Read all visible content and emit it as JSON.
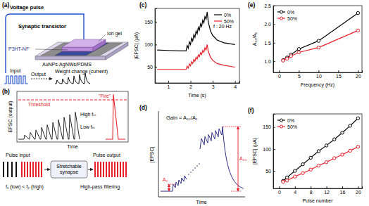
{
  "panel_a": {
    "label": "(a)",
    "voltage_pulse": "Voltage pulse",
    "device": "Synaptic transistor",
    "ion_gel": "Ion gel",
    "channel": "P3HT-NF",
    "electrode": "AuNPs-AgNWs/PDMS",
    "input": "Input",
    "output": "Output",
    "weight_change": "Weight change (current)"
  },
  "panel_b": {
    "label": "(b)",
    "y_label": "EPSC (output)",
    "x_label": "Time",
    "threshold": "Threshold",
    "fire": "\"Fire\"",
    "high": "High fᵢₙ",
    "low": "Low fᵢₙ",
    "pulse_input": "Pulse input",
    "pulse_output": "Pulse output",
    "synapse": "Stretchable synapse",
    "condition": "f₁ (low) < f₂ (high)",
    "filter": "High-pass filtering"
  },
  "panel_d": {
    "label": "(d)",
    "title": "Gain = A₂₀/A₁",
    "y_label": "|EPSC|",
    "x_label": "Time",
    "a1": "A₁",
    "a20": "A₂₀"
  },
  "chart_data": [
    {
      "type": "line",
      "annotations": [
        "(c)",
        "f : 20 Hz"
      ],
      "x_label": "Time (s)",
      "y_label": "|EPSC| (μA)",
      "x": [
        0.5,
        1.0,
        1.5,
        1.8,
        1.85,
        1.9,
        1.95,
        2.0,
        2.05,
        2.1,
        2.15,
        2.2,
        2.25,
        2.3,
        2.35,
        2.4,
        2.45,
        2.5,
        2.55,
        2.6,
        2.65,
        2.7,
        2.75,
        2.8,
        2.9,
        3.0,
        3.2,
        3.5,
        4.0
      ],
      "series": [
        {
          "name": "0%",
          "color": "#000000",
          "values": [
            88,
            87,
            86,
            86,
            98,
            92,
            106,
            100,
            114,
            108,
            122,
            116,
            130,
            124,
            138,
            132,
            146,
            140,
            154,
            148,
            162,
            156,
            172,
            150,
            130,
            120,
            110,
            104,
            100
          ]
        },
        {
          "name": "50%",
          "color": "#e8202a",
          "values": [
            45,
            45,
            45,
            45,
            52,
            48,
            57,
            53,
            62,
            58,
            67,
            63,
            72,
            68,
            77,
            73,
            82,
            78,
            87,
            83,
            93,
            88,
            100,
            85,
            72,
            65,
            58,
            54,
            50
          ]
        }
      ],
      "xlim": [
        0.4,
        4.2
      ],
      "xticks": [
        1,
        2,
        3,
        4
      ],
      "ylim": [
        15,
        180
      ],
      "yticks": [
        50,
        100,
        150
      ],
      "legend": "upper right"
    },
    {
      "type": "line",
      "annotations": [
        "(e)"
      ],
      "x_label": "Frequency (Hz)",
      "y_label": "A₂₀/A₁",
      "x": [
        1,
        2,
        3,
        5,
        10,
        20
      ],
      "series": [
        {
          "name": "0%",
          "color": "#000000",
          "values": [
            1.03,
            1.1,
            1.18,
            1.33,
            1.55,
            2.3
          ]
        },
        {
          "name": "50%",
          "color": "#e8202a",
          "values": [
            1.02,
            1.07,
            1.14,
            1.24,
            1.37,
            1.83
          ]
        }
      ],
      "xlim": [
        -1.5,
        21
      ],
      "xticks": [
        0,
        5,
        10,
        15,
        20
      ],
      "ylim": [
        0.7,
        2.5
      ],
      "yticks": [
        {
          "value": 1,
          "label": "1.0"
        },
        {
          "value": 1.5,
          "label": "1.5"
        },
        {
          "value": 2,
          "label": "2.0"
        },
        {
          "value": 2.5,
          "label": "2.5"
        }
      ],
      "marker": "circle",
      "legend": "upper left"
    },
    {
      "type": "line",
      "annotations": [
        "(f)"
      ],
      "x_label": "Pulse number",
      "y_label": "|EPSC| (μA)",
      "x": [
        1,
        2,
        4,
        6,
        8,
        10,
        12,
        14,
        16,
        18,
        20
      ],
      "series": [
        {
          "name": "0%",
          "color": "#000000",
          "values": [
            27,
            35,
            50,
            65,
            80,
            95,
            108,
            122,
            137,
            153,
            170
          ]
        },
        {
          "name": "50%",
          "color": "#e8202a",
          "values": [
            25,
            28,
            37,
            45,
            53,
            62,
            70,
            79,
            87,
            96,
            105
          ]
        }
      ],
      "xlim": [
        -1.5,
        21
      ],
      "xticks": [
        0,
        4,
        8,
        12,
        16,
        20
      ],
      "ylim": [
        10,
        180
      ],
      "yticks": [
        50,
        100,
        150
      ],
      "marker": "circle",
      "legend": "upper left"
    }
  ]
}
